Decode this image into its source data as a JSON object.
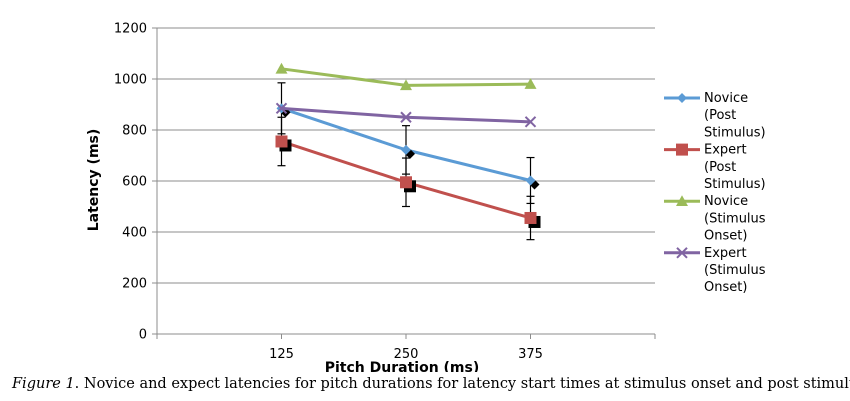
{
  "chart_data": {
    "type": "line",
    "x": [
      125,
      250,
      375
    ],
    "xlabel": "Pitch Duration (ms)",
    "ylabel": "Latency (ms)",
    "ylim": [
      0,
      1200
    ],
    "yticks": [
      0,
      200,
      400,
      600,
      800,
      1000,
      1200
    ],
    "grid": true,
    "legend_position": "right",
    "series": [
      {
        "name": "Novice (Post Stimulus)",
        "legend_lines": [
          "Novice",
          "(Post",
          "Stimulus)"
        ],
        "values": [
          885,
          722,
          602
        ],
        "color": "#5b9bd5",
        "marker": "diamond",
        "error": [
          100,
          95,
          90
        ]
      },
      {
        "name": "Expert (Post Stimulus)",
        "legend_lines": [
          "Expert",
          "(Post",
          "Stimulus)"
        ],
        "values": [
          755,
          595,
          455
        ],
        "color": "#c0504d",
        "marker": "square",
        "error": [
          95,
          95,
          85
        ]
      },
      {
        "name": "Novice (Stimulus Onset)",
        "legend_lines": [
          "Novice",
          "(Stimulus",
          "Onset)"
        ],
        "values": [
          1040,
          975,
          980
        ],
        "color": "#9bbb59",
        "marker": "triangle"
      },
      {
        "name": "Expert (Stimulus Onset)",
        "legend_lines": [
          "Expert",
          "(Stimulus",
          "Onset)"
        ],
        "values": [
          885,
          850,
          832
        ],
        "color": "#8064a2",
        "marker": "x"
      }
    ]
  },
  "caption": {
    "figure_label": "Figure 1",
    "text": ". Novice and expect latencies for pitch durations for latency start times at stimulus onset and post stimulus"
  }
}
